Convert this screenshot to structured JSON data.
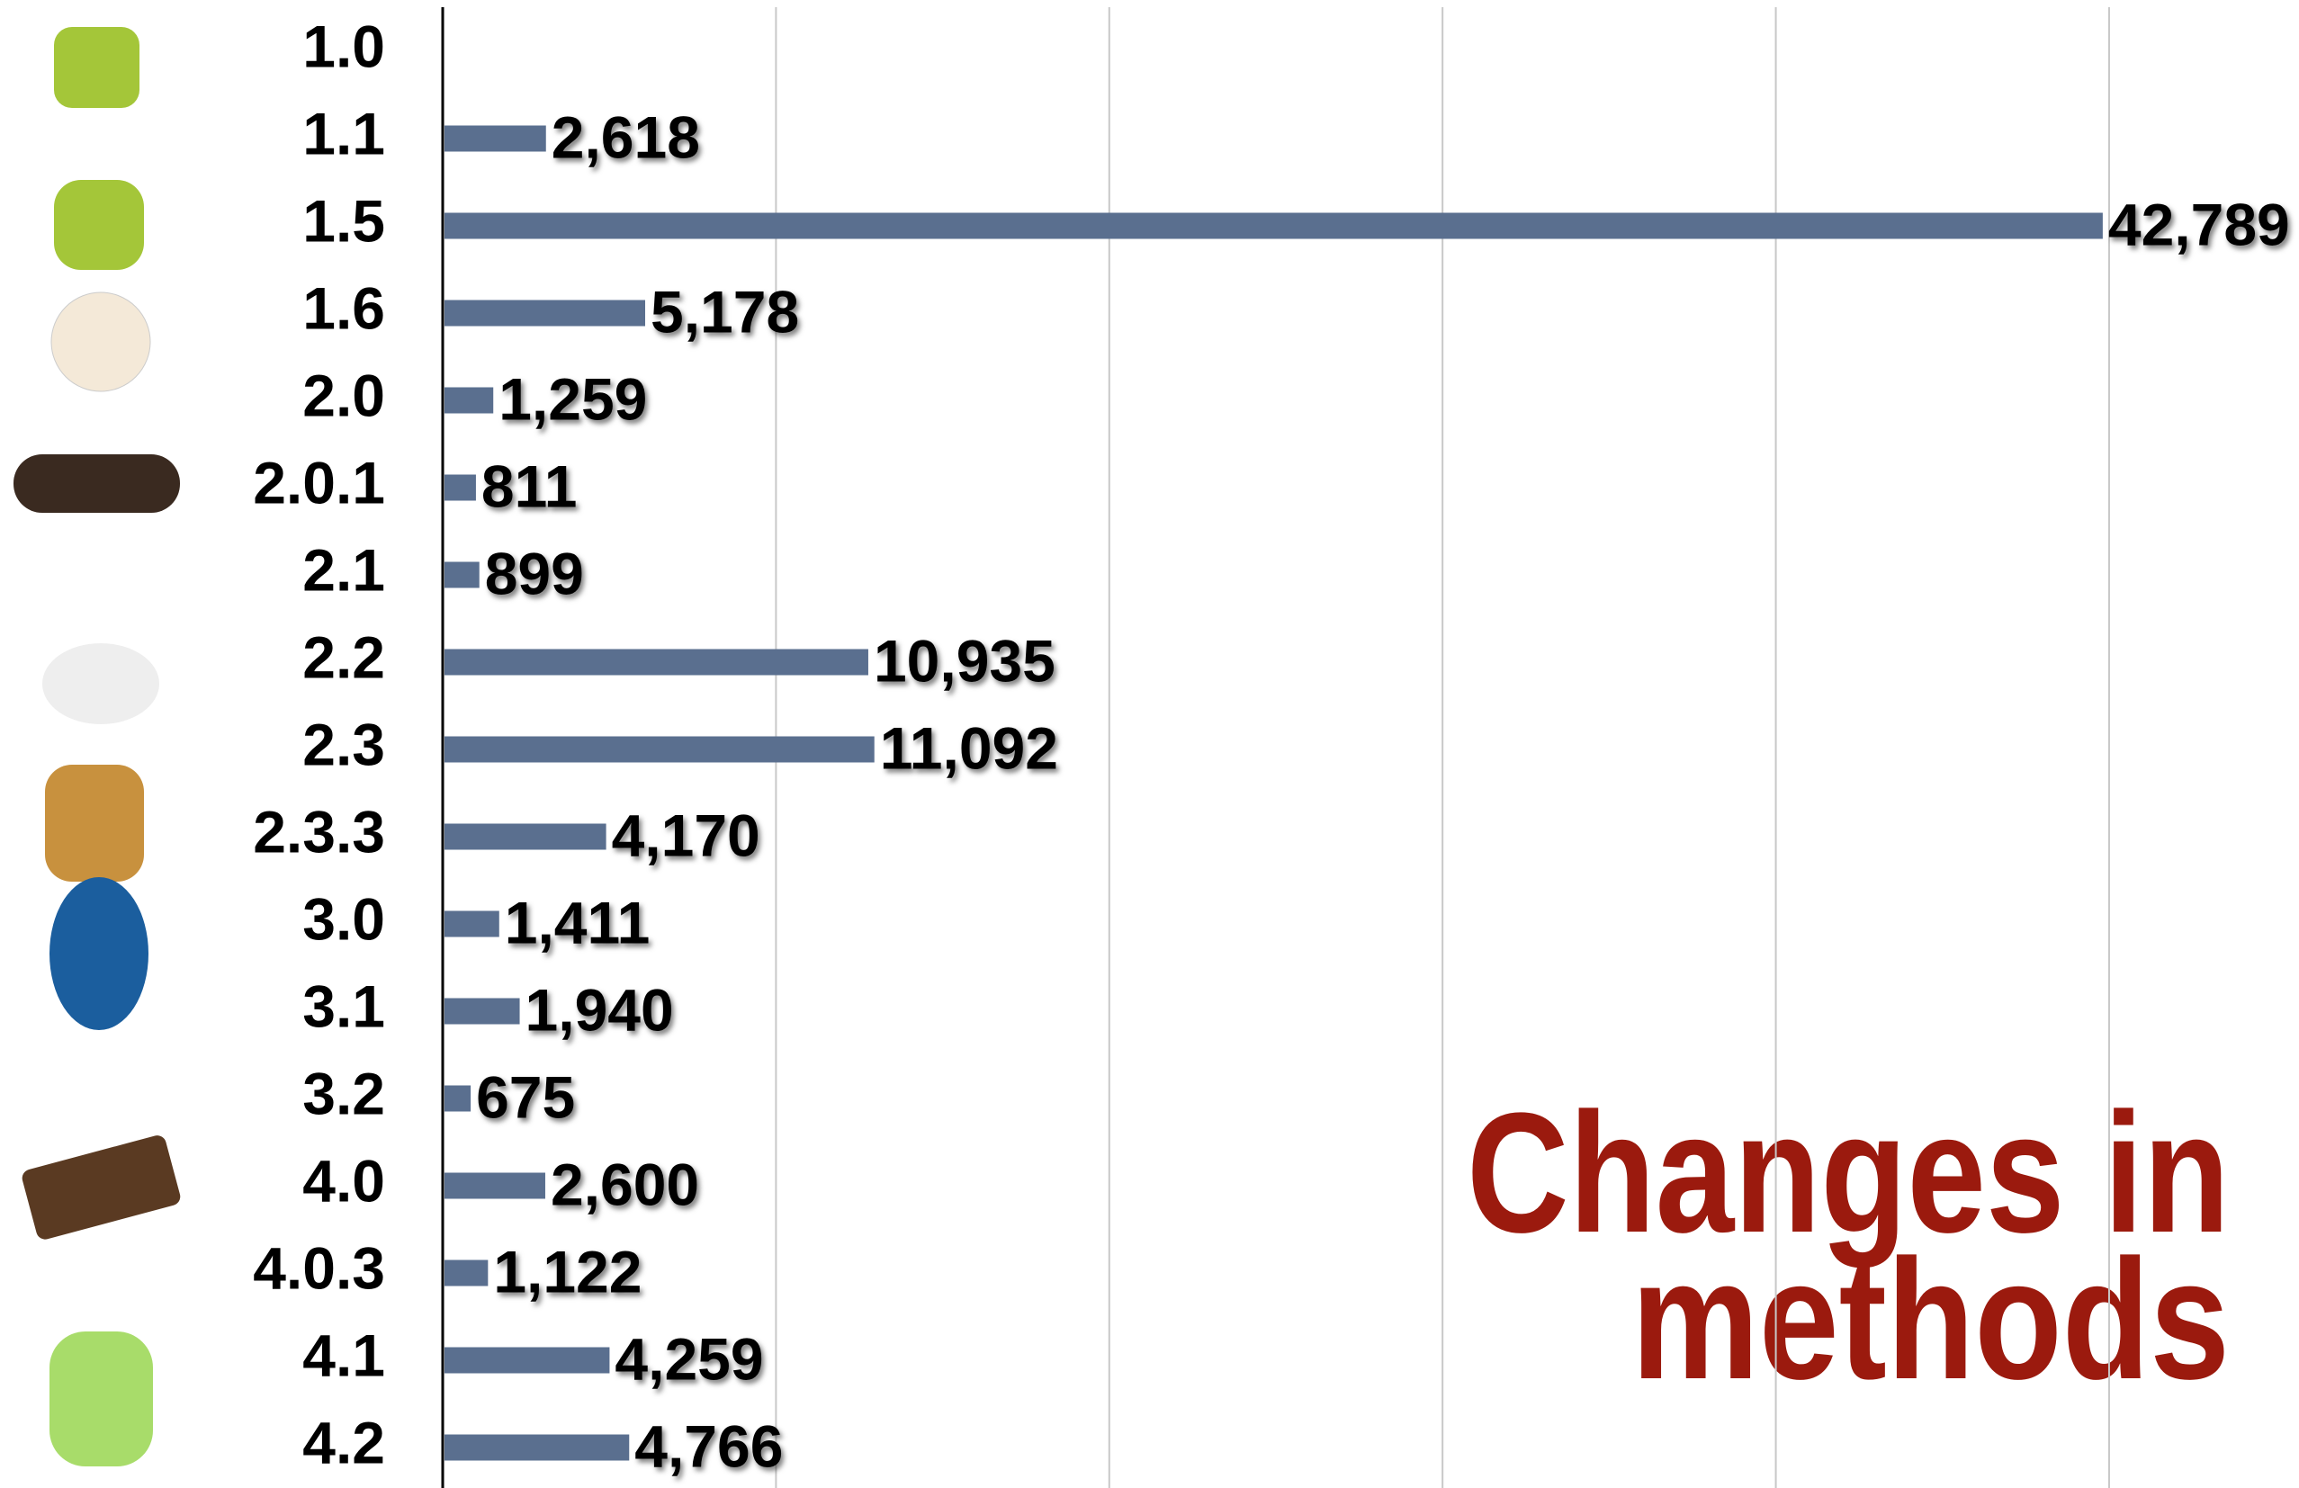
{
  "chart_data": {
    "type": "hbar",
    "title": [
      "Changes in",
      "methods"
    ],
    "categories": [
      "1.0",
      "1.1",
      "1.5",
      "1.6",
      "2.0",
      "2.0.1",
      "2.1",
      "2.2",
      "2.3",
      "2.3.3",
      "3.0",
      "3.1",
      "3.2",
      "4.0",
      "4.0.3",
      "4.1",
      "4.2"
    ],
    "values": [
      null,
      2618,
      42789,
      5178,
      1259,
      811,
      899,
      10935,
      11092,
      4170,
      1411,
      1940,
      675,
      2600,
      1122,
      4259,
      4766
    ],
    "value_labels": [
      null,
      "2,618",
      "42,789",
      "5,178",
      "1,259",
      "811",
      "899",
      "10,935",
      "11,092",
      "4,170",
      "1,411",
      "1,940",
      "675",
      "2,600",
      "1,122",
      "4,259",
      "4,766"
    ],
    "color": "#5a6f8f",
    "title_color": "#9b1a0e",
    "xlim": [
      0,
      47900
    ],
    "xticks": [
      0,
      8600,
      17200,
      25800,
      34400,
      43000
    ],
    "grid": true
  }
}
